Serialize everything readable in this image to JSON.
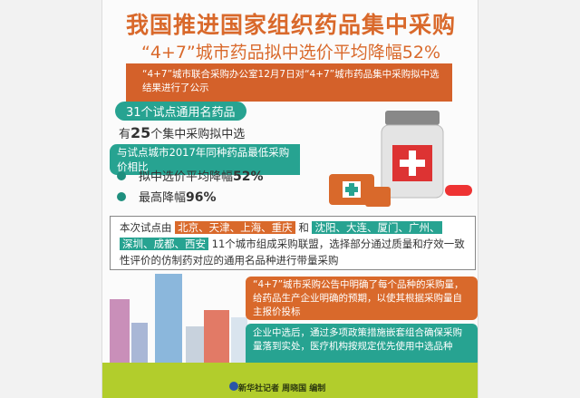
{
  "title": "我国推进国家组织药品集中采购",
  "subtitle": "“4+7”城市药品拟中选价平均降幅52%",
  "banner": "“4+7”城市联合采购办公室12月7日对“4+7”城市药品集中采购拟中选结果进行了公示",
  "stats": {
    "pill": "31个试点通用名药品",
    "line_prefix": "有",
    "line_number": "25",
    "line_suffix": "个集中采购拟中选",
    "compare": "与试点城市2017年同种药品最低采购价相比",
    "bullets": [
      {
        "label": "拟中选价平均降幅",
        "value": "52%"
      },
      {
        "label": "最高降幅",
        "value": "96%"
      }
    ]
  },
  "cities": {
    "intro": "本次试点由",
    "group1": "北京、天津、上海、重庆",
    "and": "和",
    "group2a": "沈阳、大连、厦门、广州、",
    "group2b": "深圳、成都、西安",
    "rest": "11个城市组成采购联盟，选择部分通过质量和疗效一致性评价的仿制药对应的通用名品种进行带量采购"
  },
  "box1": "“4+7”城市采购公告中明确了每个品种的采购量，给药品生产企业明确的预期，以使其根据采购量自主报价投标",
  "box2": "企业中选后，通过多项政策措施嵌套组合确保采购量落到实处，医疗机构按规定优先使用中选品种",
  "credit": "新华社记者 周晓国 编制",
  "colors": {
    "orange": "#d9692b",
    "teal": "#27a391",
    "green": "#b2cd2c"
  }
}
